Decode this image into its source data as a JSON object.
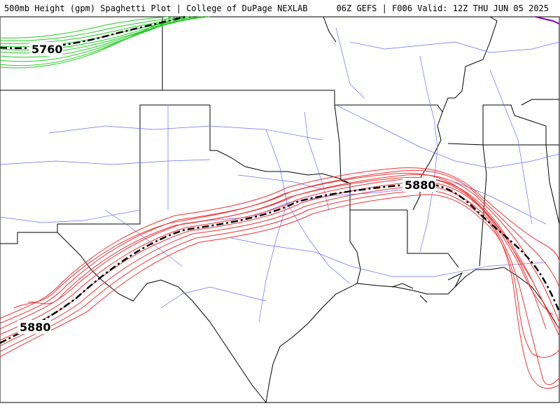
{
  "header": {
    "left": "500mb Height (gpm) Spaghetti Plot | College of DuPage NEXLAB",
    "right": "06Z GEFS | F006 Valid: 12Z THU JUN 05 2025"
  },
  "contours": {
    "green_label": "5760",
    "red_label_east": "5880",
    "red_label_west": "5880"
  },
  "colors": {
    "green_members": "#22cc22",
    "red_members": "#ee3333",
    "mean_line": "#000000",
    "roads": "#6b6bff",
    "borders": "#000000",
    "purple": "#8000c0"
  }
}
